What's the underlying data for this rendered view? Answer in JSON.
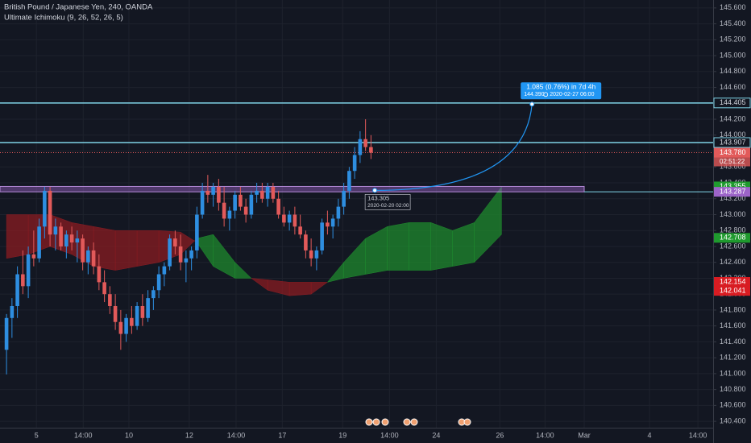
{
  "chart_data": {
    "type": "candlestick",
    "title": "British Pound / Japanese Yen, 240, OANDA",
    "subtitle": "Ultimate Ichimoku (9, 26, 52, 26, 5)",
    "up_color": "#2e8ee0",
    "down_color": "#e25a5a",
    "open": [
      141.3,
      141.7,
      141.85,
      142.25,
      142.1,
      142.5,
      142.45,
      142.85,
      143.3,
      142.75,
      142.85,
      142.6,
      142.75,
      142.65,
      142.7,
      142.4,
      142.55,
      142.35,
      142.15,
      142.0,
      141.85,
      141.65,
      141.5,
      141.7,
      141.6,
      141.85,
      141.7,
      141.95,
      142.05,
      142.25,
      142.35,
      142.7,
      142.6,
      142.4,
      142.45,
      142.55,
      143.0,
      143.3,
      143.25,
      143.35,
      143.15,
      142.95,
      143.05,
      143.25,
      143.1,
      143.0,
      143.25,
      143.3,
      143.2,
      143.35,
      143.2,
      143.0,
      142.9,
      143.0,
      142.85,
      142.75,
      142.55,
      142.45,
      142.55,
      142.9,
      142.85,
      142.95,
      143.1,
      143.3,
      143.55,
      143.75,
      143.95,
      143.85
    ],
    "high": [
      141.75,
      141.95,
      142.35,
      142.55,
      142.6,
      142.8,
      142.95,
      143.35,
      143.35,
      142.95,
      142.9,
      142.8,
      142.85,
      142.8,
      142.75,
      142.6,
      142.65,
      142.5,
      142.3,
      142.1,
      142.0,
      141.8,
      141.75,
      141.85,
      141.9,
      142.0,
      142.05,
      142.1,
      142.35,
      142.4,
      142.75,
      142.8,
      142.75,
      142.55,
      142.6,
      143.1,
      143.4,
      143.5,
      143.4,
      143.45,
      143.35,
      143.1,
      143.3,
      143.35,
      143.2,
      143.3,
      143.4,
      143.4,
      143.4,
      143.4,
      143.3,
      143.1,
      143.05,
      143.1,
      143.0,
      142.8,
      142.7,
      142.6,
      142.95,
      143.05,
      143.0,
      143.2,
      143.4,
      143.6,
      143.85,
      144.05,
      144.2,
      144.0
    ],
    "low": [
      140.99,
      141.45,
      141.7,
      142.0,
      141.95,
      142.35,
      142.4,
      142.7,
      142.6,
      142.55,
      142.55,
      142.45,
      142.55,
      142.4,
      142.3,
      142.25,
      142.25,
      142.05,
      141.9,
      141.75,
      141.55,
      141.3,
      141.4,
      141.5,
      141.55,
      141.6,
      141.65,
      141.8,
      141.95,
      142.1,
      142.3,
      142.5,
      142.3,
      142.15,
      142.3,
      142.45,
      142.95,
      143.15,
      143.1,
      143.05,
      142.85,
      142.8,
      142.95,
      143.05,
      142.9,
      142.95,
      143.15,
      143.15,
      143.1,
      143.15,
      142.95,
      142.85,
      142.8,
      142.75,
      142.7,
      142.45,
      142.35,
      142.3,
      142.5,
      142.75,
      142.7,
      142.85,
      143.0,
      143.2,
      143.45,
      143.65,
      143.8,
      143.7
    ],
    "close": [
      141.7,
      141.85,
      142.25,
      142.1,
      142.5,
      142.45,
      142.85,
      143.3,
      142.75,
      142.85,
      142.6,
      142.75,
      142.65,
      142.7,
      142.4,
      142.55,
      142.35,
      142.15,
      142.0,
      141.85,
      141.65,
      141.5,
      141.7,
      141.6,
      141.85,
      141.7,
      141.95,
      142.05,
      142.25,
      142.35,
      142.7,
      142.6,
      142.4,
      142.45,
      142.55,
      143.0,
      143.3,
      143.25,
      143.35,
      143.15,
      142.95,
      143.05,
      143.25,
      143.1,
      143.0,
      143.25,
      143.3,
      143.2,
      143.35,
      143.2,
      143.0,
      142.9,
      143.0,
      142.85,
      142.75,
      142.55,
      142.45,
      142.55,
      142.9,
      142.85,
      142.95,
      143.1,
      143.3,
      143.55,
      143.75,
      143.95,
      143.85,
      143.78
    ],
    "cloud": {
      "x": [
        0,
        4,
        8,
        12,
        16,
        20,
        24,
        28,
        32,
        35,
        38,
        42,
        45,
        48,
        52,
        56,
        59,
        62,
        66,
        70,
        74,
        78,
        82,
        86,
        91
      ],
      "span_a": [
        142.45,
        142.5,
        142.6,
        142.5,
        142.35,
        142.3,
        142.35,
        142.4,
        142.5,
        142.7,
        142.75,
        142.4,
        142.2,
        142.05,
        141.98,
        142.0,
        142.15,
        142.4,
        142.7,
        142.85,
        142.9,
        142.9,
        142.8,
        142.9,
        143.35
      ],
      "span_b": [
        143.0,
        143.0,
        143.0,
        142.9,
        142.85,
        142.8,
        142.8,
        142.8,
        142.78,
        142.65,
        142.35,
        142.2,
        142.2,
        142.18,
        142.15,
        142.15,
        142.15,
        142.2,
        142.25,
        142.3,
        142.3,
        142.3,
        142.35,
        142.4,
        142.75
      ],
      "up_color": "#1f8a2e",
      "down_color": "#8a1c22"
    },
    "xlim": [
      -1.2,
      129.9
    ],
    "xticks": [
      {
        "value": 5.5,
        "label": "5"
      },
      {
        "value": 14.1,
        "label": "14:00"
      },
      {
        "value": 22.5,
        "label": "10"
      },
      {
        "value": 33.6,
        "label": "12"
      },
      {
        "value": 42.2,
        "label": "14:00"
      },
      {
        "value": 50.7,
        "label": "17"
      },
      {
        "value": 61.8,
        "label": "19"
      },
      {
        "value": 70.4,
        "label": "14:00"
      },
      {
        "value": 79,
        "label": "24"
      },
      {
        "value": 90.7,
        "label": "26"
      },
      {
        "value": 99,
        "label": "14:00"
      },
      {
        "value": 106.2,
        "label": "Mar"
      },
      {
        "value": 118.2,
        "label": "4"
      },
      {
        "value": 127.1,
        "label": "14:00"
      }
    ],
    "ylim": [
      140.32,
      145.7
    ],
    "yticks": [
      {
        "value": 140.4,
        "label": "140.400"
      },
      {
        "value": 140.6,
        "label": "140.600"
      },
      {
        "value": 140.8,
        "label": "140.800"
      },
      {
        "value": 141,
        "label": "141.000"
      },
      {
        "value": 141.2,
        "label": "141.200"
      },
      {
        "value": 141.4,
        "label": "141.400"
      },
      {
        "value": 141.6,
        "label": "141.600"
      },
      {
        "value": 141.8,
        "label": "141.800"
      },
      {
        "value": 142,
        "label": "142.000"
      },
      {
        "value": 142.2,
        "label": "142.200"
      },
      {
        "value": 142.4,
        "label": "142.400"
      },
      {
        "value": 142.6,
        "label": "142.600"
      },
      {
        "value": 142.8,
        "label": "142.800"
      },
      {
        "value": 143,
        "label": "143.000"
      },
      {
        "value": 143.2,
        "label": "143.200"
      },
      {
        "value": 143.4,
        "label": "143.400"
      },
      {
        "value": 143.6,
        "label": "143.600"
      },
      {
        "value": 143.8,
        "label": "143.800"
      },
      {
        "value": 144,
        "label": "144.000"
      },
      {
        "value": 144.2,
        "label": "144.200"
      },
      {
        "value": 144.4,
        "label": "144.400"
      },
      {
        "value": 144.6,
        "label": "144.600"
      },
      {
        "value": 144.8,
        "label": "144.800"
      },
      {
        "value": 145,
        "label": "145.000"
      },
      {
        "value": 145.2,
        "label": "145.200"
      },
      {
        "value": 145.4,
        "label": "145.400"
      },
      {
        "value": 145.6,
        "label": "145.600"
      }
    ],
    "grid": true,
    "levels": [
      {
        "value": 144.405,
        "color": "#7fd3e6",
        "line": "solid"
      },
      {
        "value": 143.907,
        "color": "#7fd3e6",
        "line": "solid"
      },
      {
        "value": 143.78,
        "label": "143.780",
        "countdown": "02:51:22",
        "color": "#e25a5a",
        "line": "dotted"
      },
      {
        "value": 143.355,
        "color": "#1f9a2e",
        "line": "band"
      },
      {
        "value": 143.287,
        "color": "#9c64c8",
        "line": "band"
      },
      {
        "value": 142.708,
        "color": "#1f9a2e",
        "line": "none"
      },
      {
        "value": 142.154,
        "color": "#d81c22",
        "line": "none"
      },
      {
        "value": 142.041,
        "color": "#d81c22",
        "line": "none"
      }
    ],
    "projection": {
      "from": {
        "x": 67.7,
        "price": 143.305,
        "date": "2020-02-20 02:00"
      },
      "to": {
        "x": 96.6,
        "price": 144.39,
        "price_label": "144.390",
        "date": "2020-02-27 06:00"
      },
      "change_label": "1.085 (0.76%) in 7d 4h",
      "color": "#2196f3"
    }
  }
}
